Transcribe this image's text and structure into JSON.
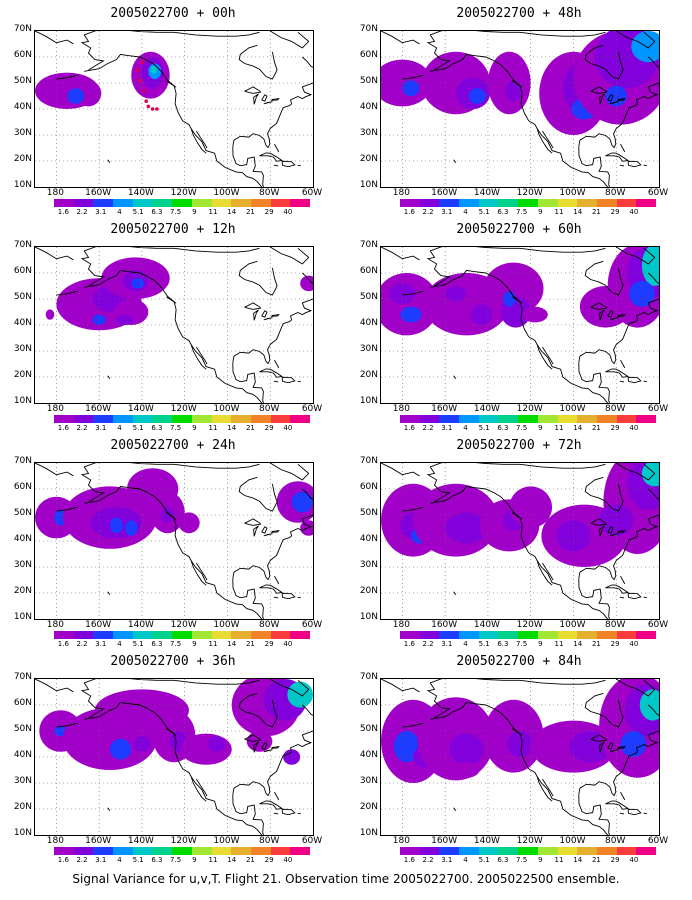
{
  "panels": [
    {
      "title": "2005022700 + 00h",
      "field": "p00"
    },
    {
      "title": "2005022700 + 48h",
      "field": "p48"
    },
    {
      "title": "2005022700 + 12h",
      "field": "p12"
    },
    {
      "title": "2005022700 + 60h",
      "field": "p60"
    },
    {
      "title": "2005022700 + 24h",
      "field": "p24"
    },
    {
      "title": "2005022700 + 72h",
      "field": "p72"
    },
    {
      "title": "2005022700 + 36h",
      "field": "p36"
    },
    {
      "title": "2005022700 + 84h",
      "field": "p84"
    }
  ],
  "lat_labels": [
    "70N",
    "60N",
    "50N",
    "40N",
    "30N",
    "20N",
    "10N"
  ],
  "lon_labels": [
    "180",
    "160W",
    "140W",
    "120W",
    "100W",
    "80W",
    "60W"
  ],
  "colorbar": {
    "labels": [
      "1.6",
      "2.2",
      "3.1",
      "4",
      "5.1",
      "6.3",
      "7.5",
      "9",
      "11",
      "14",
      "21",
      "29",
      "40"
    ],
    "colors": [
      "#a000c8",
      "#8200dc",
      "#1e3cff",
      "#0096ff",
      "#00c8c8",
      "#00d28c",
      "#00dc00",
      "#a0e632",
      "#e6dc32",
      "#e6af2d",
      "#f08228",
      "#fa3c3c",
      "#f00082"
    ]
  },
  "footer": "Signal Variance for u,v,T. Flight 21. Observation time 2005022700. 2005022500 ensemble."
}
